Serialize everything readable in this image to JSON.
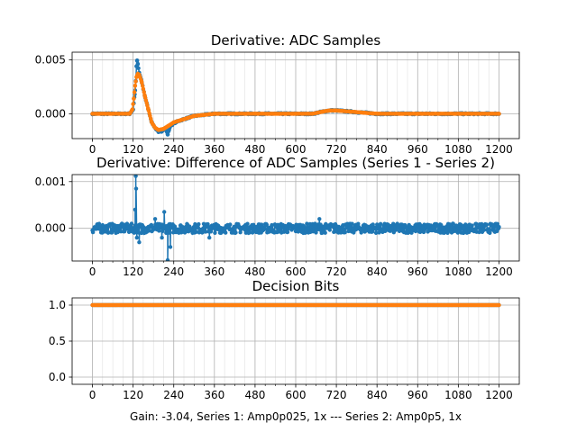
{
  "figure": {
    "xlabel": "Gain: -3.04, Series 1: Amp0p025, 1x --- Series 2: Amp0p5, 1x"
  },
  "chart_data": [
    {
      "type": "scatter",
      "title": "Derivative: ADC Samples",
      "xlim": [
        -60,
        1260
      ],
      "ylim": [
        -0.0023,
        0.0057
      ],
      "xticks": [
        0,
        120,
        240,
        360,
        480,
        600,
        720,
        840,
        960,
        1080,
        1200
      ],
      "yticks": [
        0.0,
        0.005
      ],
      "ytick_labels": [
        "0.000",
        "0.005"
      ],
      "grid": true,
      "series": [
        {
          "color": "#1f77b4",
          "points": [
            [
              0,
              0.0
            ],
            [
              60,
              0.0
            ],
            [
              110,
              0.0
            ],
            [
              120,
              0.0004
            ],
            [
              125,
              0.0018
            ],
            [
              128,
              0.003
            ],
            [
              130,
              0.0044
            ],
            [
              132,
              0.0049
            ],
            [
              134,
              0.0046
            ],
            [
              138,
              0.0038
            ],
            [
              145,
              0.003
            ],
            [
              155,
              0.0016
            ],
            [
              165,
              0.0004
            ],
            [
              175,
              -0.0008
            ],
            [
              185,
              -0.0013
            ],
            [
              195,
              -0.0017
            ],
            [
              205,
              -0.0016
            ],
            [
              215,
              -0.0013
            ],
            [
              222,
              -0.0019
            ],
            [
              230,
              -0.0011
            ],
            [
              245,
              -0.0008
            ],
            [
              260,
              -0.0006
            ],
            [
              280,
              -0.0004
            ],
            [
              300,
              -0.0002
            ],
            [
              330,
              -0.0001
            ],
            [
              360,
              0.0
            ],
            [
              480,
              0.0
            ],
            [
              600,
              0.0
            ],
            [
              650,
              0.0
            ],
            [
              680,
              0.0002
            ],
            [
              700,
              0.0003
            ],
            [
              720,
              0.0003
            ],
            [
              760,
              0.0002
            ],
            [
              800,
              0.0001
            ],
            [
              840,
              0.0
            ],
            [
              960,
              0.0
            ],
            [
              1080,
              0.0
            ],
            [
              1200,
              0.0
            ]
          ]
        },
        {
          "color": "#ff7f0e",
          "points": [
            [
              0,
              0.0
            ],
            [
              60,
              0.0
            ],
            [
              110,
              0.0
            ],
            [
              118,
              0.0004
            ],
            [
              122,
              0.0014
            ],
            [
              126,
              0.0026
            ],
            [
              130,
              0.0034
            ],
            [
              134,
              0.0037
            ],
            [
              138,
              0.0036
            ],
            [
              145,
              0.003
            ],
            [
              155,
              0.0016
            ],
            [
              165,
              0.0004
            ],
            [
              175,
              -0.0008
            ],
            [
              185,
              -0.0013
            ],
            [
              195,
              -0.0015
            ],
            [
              210,
              -0.0014
            ],
            [
              225,
              -0.0011
            ],
            [
              240,
              -0.0008
            ],
            [
              260,
              -0.0006
            ],
            [
              280,
              -0.0004
            ],
            [
              300,
              -0.0002
            ],
            [
              330,
              -0.0001
            ],
            [
              360,
              0.0
            ],
            [
              480,
              0.0
            ],
            [
              600,
              0.0
            ],
            [
              650,
              0.0
            ],
            [
              680,
              0.0002
            ],
            [
              700,
              0.0003
            ],
            [
              720,
              0.0003
            ],
            [
              760,
              0.0002
            ],
            [
              800,
              0.0001
            ],
            [
              840,
              0.0
            ],
            [
              960,
              0.0
            ],
            [
              1080,
              0.0
            ],
            [
              1200,
              0.0
            ]
          ]
        }
      ]
    },
    {
      "type": "scatter",
      "title": "Derivative: Difference of ADC Samples (Series 1 - Series 2)",
      "xlim": [
        -60,
        1260
      ],
      "ylim": [
        -0.0007,
        0.00115
      ],
      "xticks": [
        0,
        120,
        240,
        360,
        480,
        600,
        720,
        840,
        960,
        1080,
        1200
      ],
      "yticks": [
        0.0,
        0.001
      ],
      "ytick_labels": [
        "0.000",
        "0.001"
      ],
      "grid": true,
      "series": [
        {
          "color": "#1f77b4",
          "noise_band": [
            -0.0001,
            0.0001
          ],
          "spikes": [
            [
              128,
              0.00112
            ],
            [
              129,
              0.00085
            ],
            [
              126,
              0.0004
            ],
            [
              131,
              -0.0002
            ],
            [
              138,
              -0.0003
            ],
            [
              145,
              -0.0001
            ],
            [
              185,
              0.0002
            ],
            [
              205,
              -0.0002
            ],
            [
              212,
              0.00035
            ],
            [
              222,
              -0.00068
            ],
            [
              230,
              -0.0004
            ],
            [
              345,
              -0.0002
            ],
            [
              670,
              0.0002
            ]
          ]
        }
      ]
    },
    {
      "type": "scatter",
      "title": "Decision Bits",
      "xlim": [
        -60,
        1260
      ],
      "ylim": [
        -0.1,
        1.1
      ],
      "xticks": [
        0,
        120,
        240,
        360,
        480,
        600,
        720,
        840,
        960,
        1080,
        1200
      ],
      "yticks": [
        0.0,
        0.5,
        1.0
      ],
      "ytick_labels": [
        "0.0",
        "0.5",
        "1.0"
      ],
      "grid": true,
      "series": [
        {
          "color": "#1f77b4",
          "constant": 1.0,
          "x_range": [
            0,
            1200
          ]
        },
        {
          "color": "#ff7f0e",
          "constant": 1.0,
          "x_range": [
            0,
            1200
          ]
        }
      ]
    }
  ]
}
